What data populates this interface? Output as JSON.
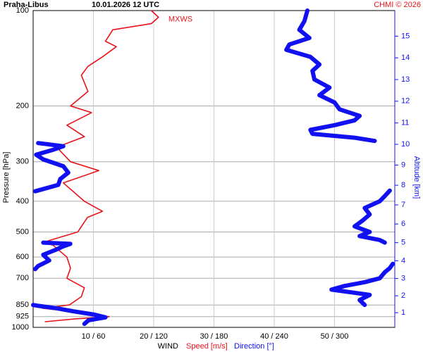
{
  "chart_data": {
    "type": "profile",
    "title": "Praha-Libus",
    "subtitle": "10.01.2026 12 UTC",
    "credit": "CHMI © 2026",
    "annotation": "MXWS",
    "xlabel": "WIND",
    "xlabel_speed": "Speed [m/s]",
    "xlabel_direction": "Direction [°]",
    "ylabel": "Pressure [hPa]",
    "y2label": "Altitude [km]",
    "log_y": true,
    "grid": true,
    "ylim": [
      1000,
      100
    ],
    "yticks": [
      100,
      200,
      300,
      400,
      500,
      600,
      700,
      850,
      925,
      1000
    ],
    "xlim": [
      0,
      60
    ],
    "x2lim": [
      0,
      360
    ],
    "xticks": [
      {
        "value": 10,
        "label": "10 / 60"
      },
      {
        "value": 20,
        "label": "20 / 120"
      },
      {
        "value": 30,
        "label": "30 / 180"
      },
      {
        "value": 40,
        "label": "40 / 240"
      },
      {
        "value": 50,
        "label": "50 / 300"
      }
    ],
    "y2ticks": [
      1,
      2,
      3,
      4,
      5,
      6,
      7,
      8,
      9,
      10,
      11,
      12,
      13,
      14,
      15
    ],
    "series": [
      {
        "name": "Speed [m/s]",
        "color": "#e8141a",
        "y": [
          960,
          940,
          925,
          900,
          870,
          850,
          800,
          750,
          700,
          650,
          600,
          550,
          540,
          500,
          450,
          430,
          400,
          350,
          320,
          300,
          270,
          250,
          230,
          210,
          200,
          180,
          160,
          150,
          140,
          130,
          125,
          115,
          110,
          105,
          100
        ],
        "values": [
          2,
          7,
          12.6,
          8.5,
          1.5,
          6,
          8,
          8.5,
          5.6,
          6.2,
          5.6,
          3.3,
          1.5,
          7.4,
          9,
          11.5,
          8.5,
          5,
          10.9,
          6.2,
          3.9,
          8.5,
          5.6,
          9.7,
          6.2,
          9.1,
          8,
          9.1,
          11.5,
          13.8,
          12,
          13.2,
          19.6,
          20.8,
          19.6
        ]
      },
      {
        "name": "Direction [°]",
        "color": "#1010f0",
        "axis": "x2",
        "y": [
          975,
          950,
          930,
          910,
          890,
          870,
          855,
          850,
          null,
          850,
          820,
          790,
          760,
          740,
          720,
          700,
          670,
          650,
          630,
          null,
          655,
          640,
          615,
          590,
          570,
          555,
          545,
          540,
          null,
          540,
          530,
          515,
          500,
          480,
          460,
          440,
          420,
          400,
          385,
          370,
          null,
          372,
          355,
          340,
          325,
          310,
          295,
          285,
          275,
          268,
          262,
          null,
          258,
          252,
          245,
          238,
          230,
          222,
          215,
          205,
          195,
          185,
          175,
          165,
          155,
          148,
          140,
          133,
          128,
          122,
          115,
          108,
          100
        ],
        "values": [
          51,
          55,
          72,
          60,
          40,
          23,
          5,
          0,
          null,
          330,
          325,
          335,
          297,
          310,
          330,
          345,
          350,
          355,
          358,
          null,
          2,
          5,
          16,
          10,
          22,
          30,
          37,
          10,
          null,
          350,
          345,
          325,
          335,
          320,
          328,
          335,
          330,
          345,
          350,
          355,
          null,
          2,
          25,
          27,
          35,
          30,
          10,
          3,
          20,
          30,
          5,
          null,
          340,
          320,
          278,
          276,
          300,
          320,
          325,
          305,
          300,
          285,
          295,
          280,
          278,
          285,
          276,
          252,
          255,
          275,
          265,
          270,
          273
        ]
      }
    ]
  }
}
